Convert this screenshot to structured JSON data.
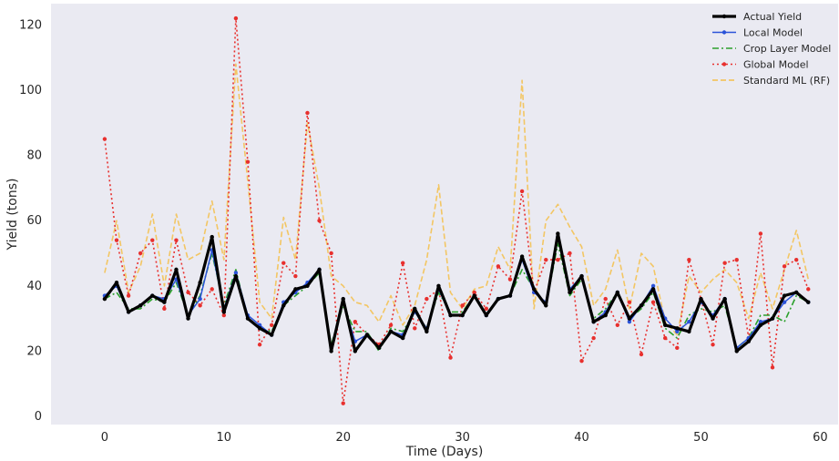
{
  "chart_data": {
    "type": "line",
    "title": "",
    "xlabel": "Time (Days)",
    "ylabel": "Yield (tons)",
    "xlim": [
      -4.5,
      61.5
    ],
    "ylim": [
      -2.5,
      126.5
    ],
    "xticks": [
      0,
      10,
      20,
      30,
      40,
      50,
      60
    ],
    "yticks": [
      0,
      20,
      40,
      60,
      80,
      100,
      120
    ],
    "grid": false,
    "legend_position": "top-right",
    "background_color": "#eaeaf2",
    "x": [
      0,
      1,
      2,
      3,
      4,
      5,
      6,
      7,
      8,
      9,
      10,
      11,
      12,
      13,
      14,
      15,
      16,
      17,
      18,
      19,
      20,
      21,
      22,
      23,
      24,
      25,
      26,
      27,
      28,
      29,
      30,
      31,
      32,
      33,
      34,
      35,
      36,
      37,
      38,
      39,
      40,
      41,
      42,
      43,
      44,
      45,
      46,
      47,
      48,
      49,
      50,
      51,
      52,
      53,
      54,
      55,
      56,
      57,
      58,
      59
    ],
    "series": [
      {
        "name": "Standard ML (RF)",
        "color": "#f5c04a",
        "style": "dashed",
        "values": [
          44,
          60,
          38,
          46,
          62,
          40,
          62,
          48,
          50,
          66,
          48,
          108,
          72,
          35,
          30,
          61,
          48,
          90,
          70,
          43,
          40,
          35,
          34,
          29,
          37,
          28,
          34,
          48,
          71,
          38,
          33,
          39,
          40,
          52,
          45,
          103,
          33,
          60,
          65,
          58,
          52,
          34,
          39,
          51,
          33,
          50,
          46,
          29,
          25,
          43,
          38,
          42,
          45,
          41,
          30,
          44,
          33,
          45,
          57,
          42
        ]
      },
      {
        "name": "Global Model",
        "color": "#e8302e",
        "style": "dotted",
        "values": [
          85,
          54,
          37,
          50,
          54,
          33,
          54,
          38,
          34,
          39,
          31,
          122,
          78,
          22,
          28,
          47,
          43,
          93,
          60,
          50,
          4,
          29,
          25,
          22,
          28,
          47,
          27,
          36,
          39,
          18,
          34,
          38,
          33,
          46,
          42,
          69,
          38,
          48,
          48,
          50,
          17,
          24,
          36,
          28,
          35,
          19,
          35,
          24,
          21,
          48,
          36,
          22,
          47,
          48,
          24,
          56,
          15,
          46,
          48,
          39
        ]
      },
      {
        "name": "Crop Layer Model",
        "color": "#2ca02c",
        "style": "dashdot",
        "values": [
          36,
          38,
          33,
          33,
          36,
          35,
          41,
          31,
          37,
          50,
          34,
          45,
          30,
          27,
          26,
          34,
          37,
          40,
          44,
          22,
          34,
          26,
          26,
          20,
          27,
          26,
          32,
          27,
          38,
          32,
          32,
          37,
          31,
          36,
          37,
          45,
          39,
          34,
          53,
          37,
          42,
          30,
          33,
          38,
          30,
          33,
          38,
          27,
          24,
          31,
          33,
          32,
          34,
          21,
          24,
          31,
          31,
          29,
          37,
          35
        ]
      },
      {
        "name": "Local Model",
        "color": "#2a52d8",
        "style": "solid-marker",
        "values": [
          37,
          40,
          32,
          34,
          37,
          36,
          42,
          31,
          36,
          51,
          33,
          44,
          31,
          28,
          25,
          35,
          38,
          41,
          45,
          21,
          35,
          23,
          25,
          21,
          26,
          25,
          32,
          27,
          39,
          31,
          31,
          37,
          31,
          36,
          37,
          48,
          38,
          35,
          55,
          39,
          43,
          29,
          32,
          38,
          29,
          34,
          40,
          30,
          26,
          29,
          35,
          31,
          36,
          21,
          24,
          29,
          30,
          35,
          38,
          35
        ]
      },
      {
        "name": "Actual Yield",
        "color": "#000000",
        "style": "bold",
        "values": [
          36,
          41,
          32,
          34,
          37,
          35,
          45,
          30,
          41,
          55,
          32,
          43,
          30,
          27,
          25,
          34,
          39,
          40,
          45,
          20,
          36,
          20,
          25,
          21,
          26,
          24,
          33,
          26,
          40,
          31,
          31,
          37,
          31,
          36,
          37,
          49,
          39,
          34,
          56,
          38,
          43,
          29,
          31,
          38,
          30,
          34,
          39,
          28,
          27,
          26,
          36,
          30,
          36,
          20,
          23,
          28,
          30,
          37,
          38,
          35
        ]
      }
    ],
    "legend_order": [
      "Actual Yield",
      "Local Model",
      "Crop Layer Model",
      "Global Model",
      "Standard ML (RF)"
    ]
  }
}
